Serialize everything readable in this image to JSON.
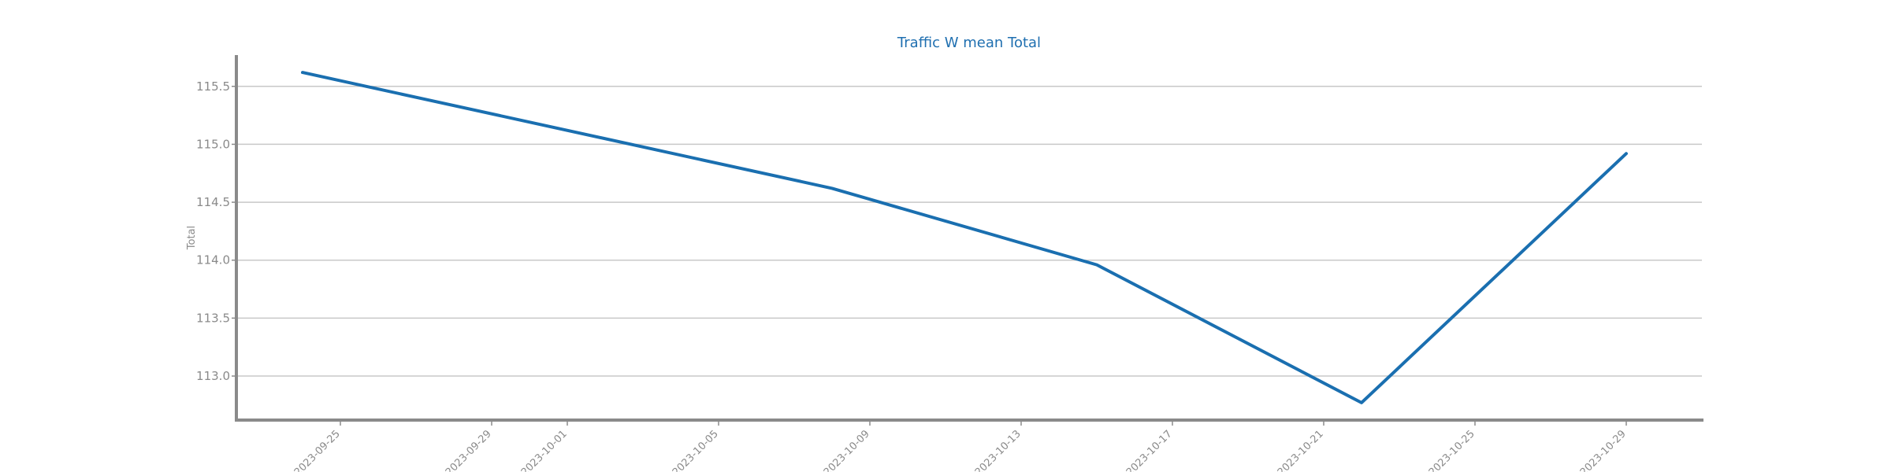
{
  "chart_data": {
    "type": "line",
    "title": "Traffic W mean Total",
    "xlabel": "",
    "ylabel": "Total",
    "x": [
      "2023-09-24",
      "2023-10-08",
      "2023-10-15",
      "2023-10-22",
      "2023-10-29"
    ],
    "series": [
      {
        "values": [
          115.62,
          114.62,
          113.96,
          112.77,
          114.92
        ]
      }
    ],
    "x_ticks": [
      "2023-09-25",
      "2023-09-29",
      "2023-10-01",
      "2023-10-05",
      "2023-10-09",
      "2023-10-13",
      "2023-10-17",
      "2023-10-21",
      "2023-10-25",
      "2023-10-29"
    ],
    "y_ticks": [
      113.0,
      113.5,
      114.0,
      114.5,
      115.0,
      115.5
    ],
    "xlim": [
      "2023-09-22.25",
      "2023-10-31"
    ],
    "ylim": [
      112.62,
      115.77
    ],
    "grid": "horizontal",
    "line_color": "#1a6fb0",
    "axis_color": "#8a8a8a",
    "grid_color": "#c8c8c8"
  }
}
